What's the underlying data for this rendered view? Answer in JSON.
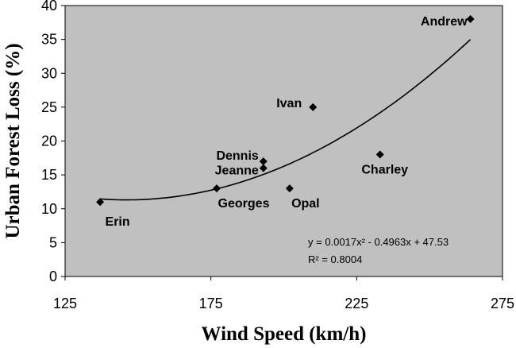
{
  "chart_data": {
    "type": "scatter",
    "xlabel": "Wind Speed (km/h)",
    "ylabel": "Urban Forest Loss (%)",
    "xlim": [
      125,
      275
    ],
    "ylim": [
      0,
      40
    ],
    "x_ticks": [
      "125",
      "175",
      "225",
      "275"
    ],
    "y_ticks": [
      "0",
      "5",
      "10",
      "15",
      "20",
      "25",
      "30",
      "35",
      "40"
    ],
    "points": [
      {
        "label": "Andrew",
        "x": 264,
        "y": 38
      },
      {
        "label": "Ivan",
        "x": 210,
        "y": 25
      },
      {
        "label": "Charley",
        "x": 233,
        "y": 18
      },
      {
        "label": "Dennis",
        "x": 193,
        "y": 17
      },
      {
        "label": "Jeanne",
        "x": 193,
        "y": 16
      },
      {
        "label": "Georges",
        "x": 177,
        "y": 13
      },
      {
        "label": "Opal",
        "x": 202,
        "y": 13
      },
      {
        "label": "Erin",
        "x": 137,
        "y": 11
      }
    ],
    "trendline": {
      "type": "polynomial",
      "coefficients": [
        0.0017,
        -0.4963,
        47.53
      ],
      "x_range": [
        137,
        264
      ]
    },
    "equation_text": "y = 0.0017x² - 0.4963x + 47.53",
    "r2_text": "R² = 0.8004",
    "plot_background": "#c0c0c0",
    "grid": false
  }
}
